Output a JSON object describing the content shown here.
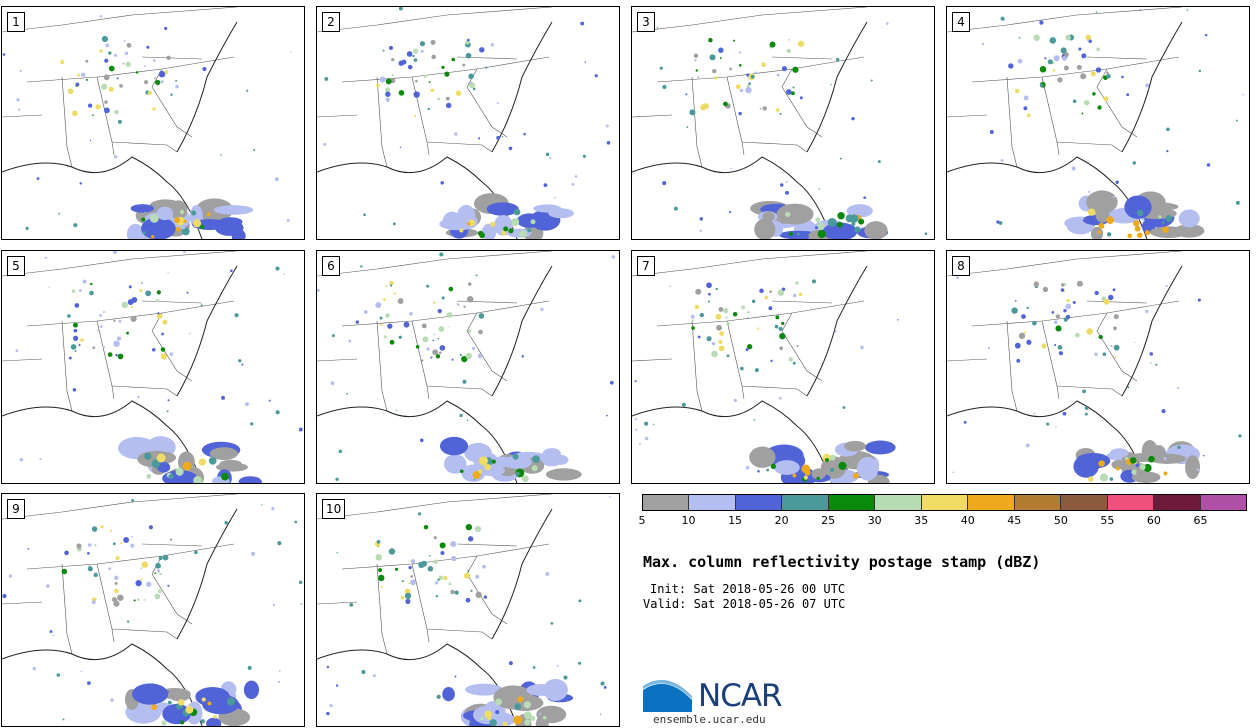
{
  "panels": [
    {
      "label": "1"
    },
    {
      "label": "2"
    },
    {
      "label": "3"
    },
    {
      "label": "4"
    },
    {
      "label": "5"
    },
    {
      "label": "6"
    },
    {
      "label": "7"
    },
    {
      "label": "8"
    },
    {
      "label": "9"
    },
    {
      "label": "10"
    }
  ],
  "colorbar": {
    "colors": [
      "#a0a0a0",
      "#b4bef0",
      "#5064d8",
      "#4a9a9c",
      "#0a8a0a",
      "#b8dcb4",
      "#f0dc64",
      "#eeaa1c",
      "#b47c30",
      "#8c5a3c",
      "#f0507c",
      "#6e1a3a",
      "#b050a6"
    ],
    "ticks": [
      "5",
      "10",
      "15",
      "20",
      "25",
      "30",
      "35",
      "40",
      "45",
      "50",
      "55",
      "60",
      "65"
    ]
  },
  "title": "Max. column reflectivity postage stamp (dBZ)",
  "init": "Init: Sat 2018-05-26 00 UTC",
  "valid": "Valid: Sat 2018-05-26 07 UTC",
  "logo": {
    "text": "NCAR",
    "url": "ensemble.ucar.edu",
    "color": "#0a72c0"
  }
}
